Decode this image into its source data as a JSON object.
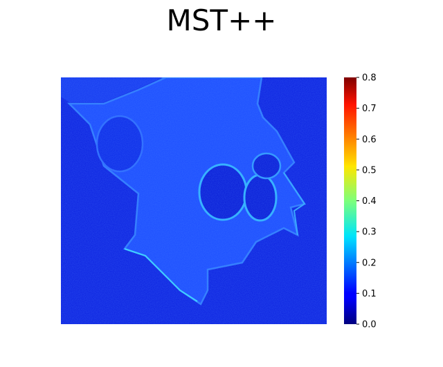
{
  "chart_data": {
    "type": "heatmap",
    "title": "MST++",
    "xlabel": "",
    "ylabel": "",
    "axes_visible": false,
    "colormap": "jet",
    "colorbar": {
      "range": [
        0.0,
        0.8
      ],
      "ticks": [
        "0.0",
        "0.1",
        "0.2",
        "0.3",
        "0.4",
        "0.5",
        "0.6",
        "0.7",
        "0.8"
      ],
      "placement": "right"
    },
    "description_values": {
      "background_error": 0.05,
      "cell_interior_error": 0.11,
      "edge_error_peak": 0.3
    }
  }
}
